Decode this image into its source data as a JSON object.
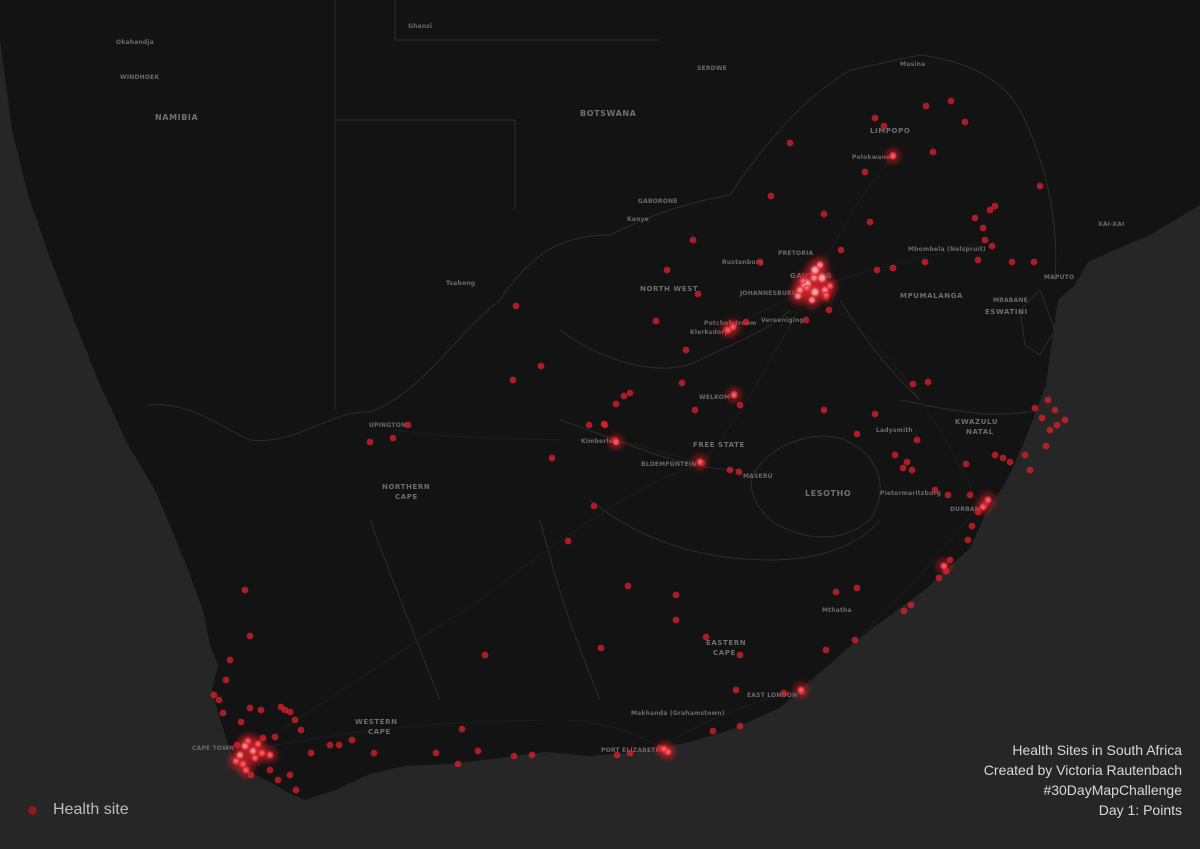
{
  "map": {
    "colors": {
      "sea": "#262626",
      "land": "#131313",
      "border": "#2f2f2f",
      "point": "#e8202a",
      "hotspot": "#ffd6d6"
    },
    "labels": {
      "countries": [
        "NAMIBIA",
        "BOTSWANA",
        "LESOTHO",
        "ESWATINI"
      ],
      "provinces": [
        "LIMPOPO",
        "NORTH WEST",
        "MPUMALANGA",
        "FREE STATE",
        "KWAZULU",
        "NATAL",
        "NORTHERN",
        "CAPE",
        "EASTERN",
        "CAPE",
        "WESTERN",
        "CAPE",
        "GAUTENG"
      ],
      "cities": [
        "Okahandja",
        "WINDHOEK",
        "Ghanzi",
        "SERDWE",
        "Musina",
        "Polokwane",
        "GABORONE",
        "Kanye",
        "PRETORIA",
        "Rustenburg",
        "JOHANNESBURG",
        "Mbombela (Nelspruit)",
        "MAPUTO",
        "XAI-XAI",
        "MBABANE",
        "Tsabong",
        "Potchefstroom",
        "Klerksdorp",
        "Vereeniging",
        "WELKOM",
        "Ladysmith",
        "UPINGTON",
        "Kimberley",
        "BLOEMFONTEIN",
        "MASERU",
        "Pietermaritzburg",
        "DURBAN",
        "Mthatha",
        "EAST LONDON",
        "Makhanda (Grahamstown)",
        "PORT ELIZABETH",
        "CAPE TOWN"
      ]
    }
  },
  "legend": {
    "label": "Health site",
    "icon": "red-dot"
  },
  "credits": {
    "title": "Health Sites in South Africa",
    "author": "Created by Victoria Rautenbach",
    "hashtag": "#30DayMapChallenge",
    "day": "Day 1: Points"
  }
}
